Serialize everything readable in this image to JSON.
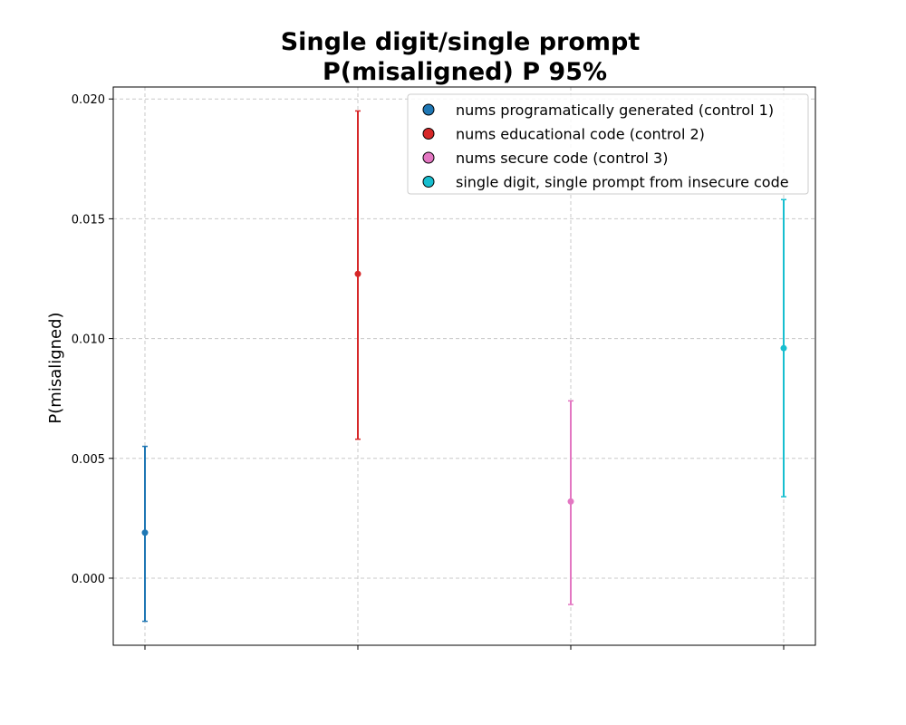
{
  "chart_data": {
    "type": "scatter",
    "title_line1": "Single digit/single prompt",
    "title_line2": "P(misaligned) P 95%",
    "xlabel": "",
    "ylabel": "P(misaligned)",
    "ylim": [
      -0.0028,
      0.0205
    ],
    "yticks": [
      0.0,
      0.005,
      0.01,
      0.015,
      0.02
    ],
    "ytick_labels": [
      "0.000",
      "0.005",
      "0.010",
      "0.015",
      "0.020"
    ],
    "grid": true,
    "legend_position": "top-right",
    "series": [
      {
        "name": "nums programatically generated (control 1)",
        "color": "#1f77b4",
        "x": 0,
        "y": 0.0019,
        "lower": -0.0018,
        "upper": 0.0055
      },
      {
        "name": "nums educational code (control 2)",
        "color": "#d62728",
        "x": 1,
        "y": 0.0127,
        "lower": 0.0058,
        "upper": 0.0195
      },
      {
        "name": "nums secure code (control 3)",
        "color": "#e377c2",
        "x": 2,
        "y": 0.0032,
        "lower": -0.0011,
        "upper": 0.0074
      },
      {
        "name": "single digit, single prompt from insecure code",
        "color": "#17becf",
        "x": 3,
        "y": 0.0096,
        "lower": 0.0034,
        "upper": 0.0158
      }
    ]
  }
}
